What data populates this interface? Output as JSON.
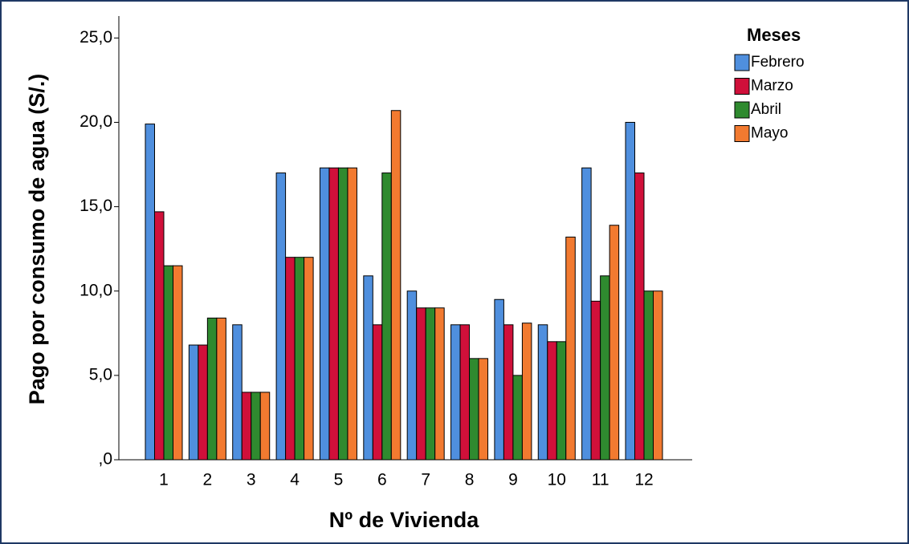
{
  "chart_data": {
    "type": "bar",
    "x_label": "Nº de Vivienda",
    "y_label": "Pago por consumo de agua (S/.)",
    "legend_title": "Meses",
    "legend_position": "upper right outside",
    "categories": [
      "1",
      "2",
      "3",
      "4",
      "5",
      "6",
      "7",
      "8",
      "9",
      "10",
      "11",
      "12"
    ],
    "series": [
      {
        "name": "Febrero",
        "color": "#4f8fde",
        "values": [
          19.9,
          6.8,
          8.0,
          17.0,
          17.3,
          10.9,
          10.0,
          8.0,
          9.5,
          8.0,
          17.3,
          20.0
        ]
      },
      {
        "name": "Marzo",
        "color": "#d0103a",
        "values": [
          14.7,
          6.8,
          4.0,
          12.0,
          17.3,
          8.0,
          9.0,
          8.0,
          8.0,
          7.0,
          9.4,
          17.0
        ]
      },
      {
        "name": "Abril",
        "color": "#2f8a2f",
        "values": [
          11.5,
          8.4,
          4.0,
          12.0,
          17.3,
          17.0,
          9.0,
          6.0,
          5.0,
          7.0,
          10.9,
          10.0
        ]
      },
      {
        "name": "Mayo",
        "color": "#f27a30",
        "values": [
          11.5,
          8.4,
          4.0,
          12.0,
          17.3,
          20.7,
          9.0,
          6.0,
          8.1,
          13.2,
          13.9,
          10.0
        ]
      }
    ],
    "ylim": [
      0,
      26.3
    ],
    "yticks": [
      {
        "value": 0,
        "label": ",0"
      },
      {
        "value": 5,
        "label": "5,0"
      },
      {
        "value": 10,
        "label": "10,0"
      },
      {
        "value": 15,
        "label": "15,0"
      },
      {
        "value": 20,
        "label": "20,0"
      },
      {
        "value": 25,
        "label": "25,0"
      }
    ],
    "grid": false
  }
}
